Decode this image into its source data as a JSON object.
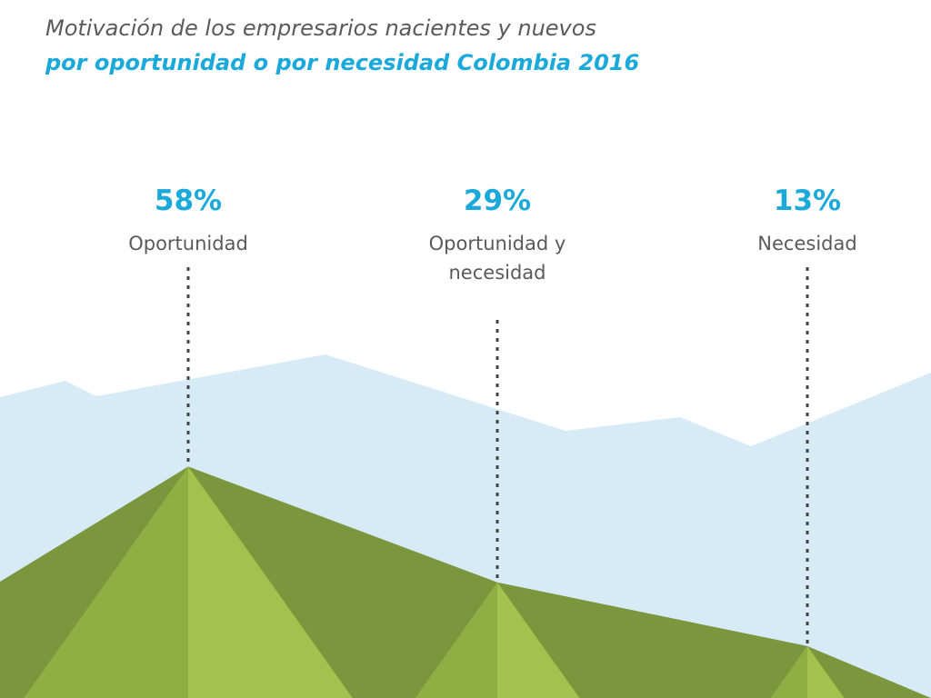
{
  "chart_data": {
    "type": "area",
    "title": "Motivación de los empresarios nacientes y nuevos",
    "subtitle": "por oportunidad o por necesidad Colombia 2016",
    "categories": [
      "Oportunidad",
      "Oportunidad y necesidad",
      "Necesidad"
    ],
    "values": [
      58,
      29,
      13
    ],
    "value_labels": [
      "58%",
      "29%",
      "13%"
    ],
    "unit": "%",
    "colors": {
      "title": "#5a5a5a",
      "accent": "#1aa9da",
      "sky": "#d6ebf5",
      "mountain_dark": "#7b963c",
      "mountain_mid": "#8fae44",
      "mountain_light": "#a3c14d",
      "guide": "#444444"
    }
  }
}
